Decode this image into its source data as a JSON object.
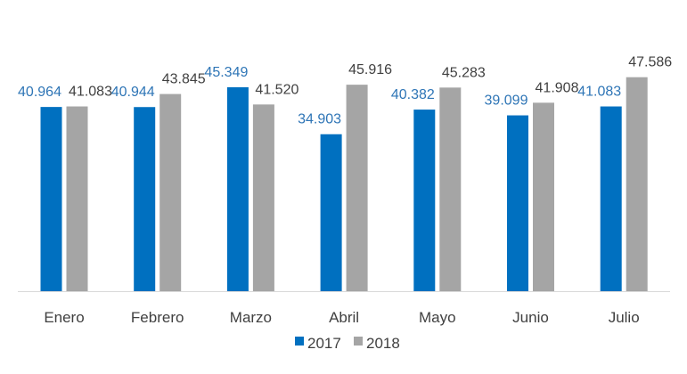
{
  "chart_data": {
    "type": "bar",
    "title": "",
    "xlabel": "",
    "ylabel": "",
    "categories": [
      "Enero",
      "Febrero",
      "Marzo",
      "Abril",
      "Mayo",
      "Junio",
      "Julio"
    ],
    "series": [
      {
        "name": "2017",
        "color": "#0070C0",
        "label_color": "#2E75B6",
        "values": [
          40.964,
          40.944,
          45.349,
          34.903,
          40.382,
          39.099,
          41.083
        ],
        "labels": [
          "40.964",
          "40.944",
          "45.349",
          "34.903",
          "40.382",
          "39.099",
          "41.083"
        ]
      },
      {
        "name": "2018",
        "color": "#A5A5A5",
        "label_color": "#404040",
        "values": [
          41.083,
          43.845,
          41.52,
          45.916,
          45.283,
          41.908,
          47.586
        ],
        "labels": [
          "41.083",
          "43.845",
          "41.520",
          "45.916",
          "45.283",
          "41.908",
          "47.586"
        ]
      }
    ],
    "ylim": [
      0,
      50
    ],
    "grid": false,
    "legend": "bottom"
  }
}
